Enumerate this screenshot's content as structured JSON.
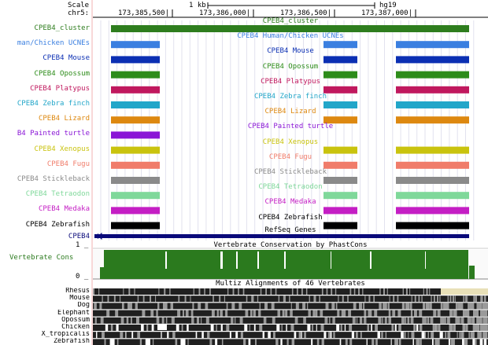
{
  "header": {
    "scale_label": "Scale",
    "chrom_label": "chr5:",
    "scale_value": "1 kb",
    "assembly": "hg19",
    "positions": [
      "173,385,500|",
      "173,386,000|",
      "173,386,500|",
      "173,387,000|"
    ]
  },
  "tracks": [
    {
      "label": "CPEB4_cluster",
      "center": "CPEB4_cluster",
      "color": "#2e7d1e",
      "type": "cluster"
    },
    {
      "label": "man/Chicken UCNEs",
      "center": "CPEB4 Human/Chicken UCNEs",
      "color": "#3a7fe0"
    },
    {
      "label": "CPEB4 Mouse",
      "center": "CPEB4 Mouse",
      "color": "#0b2fb3"
    },
    {
      "label": "CPEB4 Opossum",
      "center": "CPEB4 Opossum",
      "color": "#2d8c1a"
    },
    {
      "label": "CPEB4 Platypus",
      "center": "CPEB4 Platypus",
      "color": "#c0185e"
    },
    {
      "label": "CPEB4 Zebra finch",
      "center": "CPEB4 Zebra finch",
      "color": "#22a6c9"
    },
    {
      "label": "CPEB4 Lizard",
      "center": "CPEB4 Lizard",
      "color": "#dd8810"
    },
    {
      "label": "B4 Painted turtle",
      "center": "CPEB4 Painted turtle",
      "color": "#8a16d6"
    },
    {
      "label": "CPEB4 Xenopus",
      "center": "CPEB4 Xenopus",
      "color": "#c9c30e"
    },
    {
      "label": "CPEB4 Fugu",
      "center": "CPEB4 Fugu",
      "color": "#f07c6a"
    },
    {
      "label": "CPEB4 Stickleback",
      "center": "CPEB4 Stickleback",
      "color": "#8a8a8a"
    },
    {
      "label": "CPEB4 Tetraodon",
      "center": "CPEB4 Tetraodon",
      "color": "#7fd89a"
    },
    {
      "label": "CPEB4 Medaka",
      "center": "CPEB4 Medaka",
      "color": "#c41ec4"
    },
    {
      "label": "CPEB4 Zebrafish",
      "center": "CPEB4 Zebrafish",
      "color": "#000000"
    }
  ],
  "refseq": {
    "label": "CPEB4",
    "title": "RefSeq Genes",
    "color": "#0a0a7a"
  },
  "conservation": {
    "title": "Vertebrate Conservation by PhastCons",
    "label": "Vertebrate Cons",
    "ymax": "1 _",
    "ymin": "0 _",
    "color": "#2b7a1e"
  },
  "multiz": {
    "title": "Multiz Alignments of 46 Vertebrates",
    "species": [
      "Rhesus",
      "Mouse",
      "Dog",
      "Elephant",
      "Opossum",
      "Chicken",
      "X_tropicalis",
      "Zebrafish"
    ]
  }
}
